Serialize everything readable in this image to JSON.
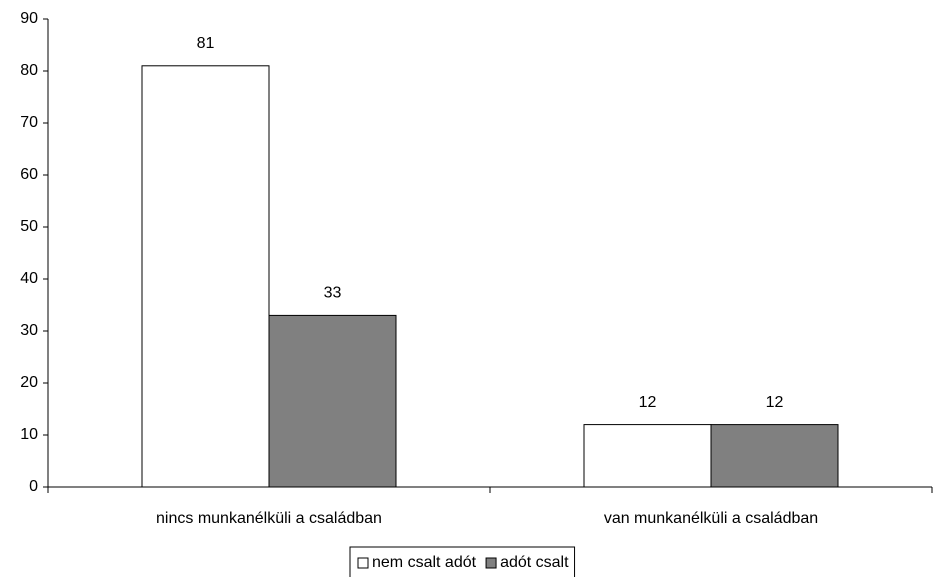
{
  "chart_data": {
    "type": "bar",
    "categories": [
      "nincs munkanélküli a családban",
      "van munkanélküli a családban"
    ],
    "series": [
      {
        "name": "nem csalt adót",
        "color": "#ffffff",
        "values": [
          81,
          12
        ]
      },
      {
        "name": "adót csalt",
        "color": "#808080",
        "values": [
          33,
          12
        ]
      }
    ],
    "ylim": [
      0,
      90
    ],
    "yticks": [
      0,
      10,
      20,
      30,
      40,
      50,
      60,
      70,
      80,
      90
    ],
    "legend": "bottom"
  }
}
